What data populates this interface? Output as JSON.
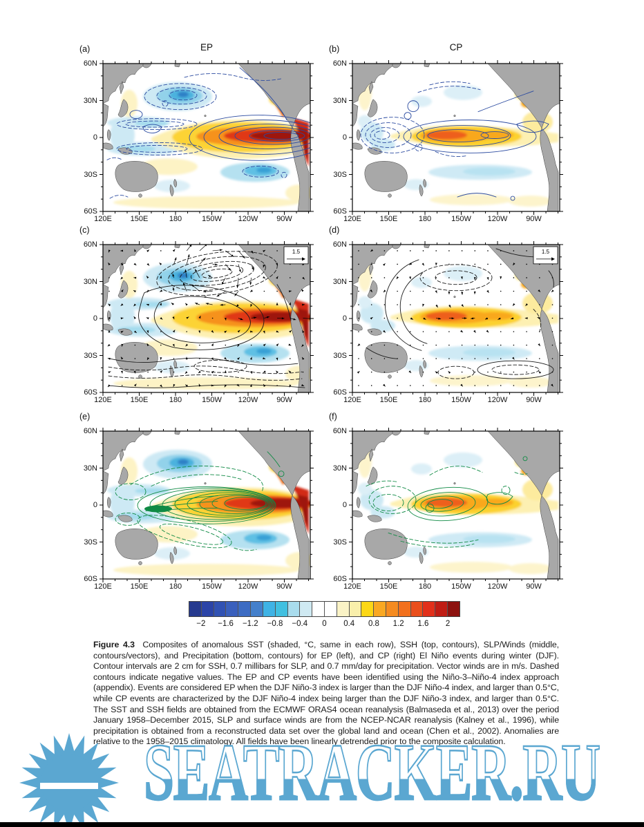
{
  "columns": [
    {
      "title": "EP"
    },
    {
      "title": "CP"
    }
  ],
  "panels": [
    {
      "letter": "(a)",
      "column": "EP",
      "shading": "SST (°C)",
      "contours": "SSH"
    },
    {
      "letter": "(b)",
      "column": "CP",
      "shading": "SST (°C)",
      "contours": "SSH"
    },
    {
      "letter": "(c)",
      "column": "EP",
      "shading": "SST (°C)",
      "contours": "SLP",
      "vectors": "surface winds",
      "vector_scale": "1.5"
    },
    {
      "letter": "(d)",
      "column": "CP",
      "shading": "SST (°C)",
      "contours": "SLP",
      "vectors": "surface winds",
      "vector_scale": "1.5"
    },
    {
      "letter": "(e)",
      "column": "EP",
      "shading": "SST (°C)",
      "contours": "Precipitation"
    },
    {
      "letter": "(f)",
      "column": "CP",
      "shading": "SST (°C)",
      "contours": "Precipitation"
    }
  ],
  "axes": {
    "xticks": [
      "120E",
      "150E",
      "180",
      "150W",
      "120W",
      "90W"
    ],
    "yticks": [
      "60N",
      "30N",
      "0",
      "30S",
      "60S"
    ]
  },
  "colorbar": {
    "ticks": [
      "−2",
      "−1.6",
      "−1.2",
      "−0.8",
      "−0.4",
      "0",
      "0.4",
      "0.8",
      "1.2",
      "1.6",
      "2"
    ],
    "colors": [
      "#263a8f",
      "#2b44a7",
      "#3152b3",
      "#3a60bd",
      "#3d6cc3",
      "#4480cb",
      "#3fb3e5",
      "#41c0e0",
      "#a9dced",
      "#cfe9f2",
      "#ffffff",
      "#ffffff",
      "#faf3c6",
      "#f9efab",
      "#fcd716",
      "#f9a823",
      "#f58b20",
      "#f2701d",
      "#ea4f1c",
      "#e2301b",
      "#c01d15",
      "#8d1310"
    ]
  },
  "caption": {
    "label": "Figure 4.3",
    "text": "Composites of anomalous SST (shaded, °C, same in each row), SSH (top, contours), SLP/Winds (middle, contours/vectors), and Precipitation (bottom, contours) for EP (left), and CP (right) El Niño events during winter (DJF). Contour intervals are 2 cm for SSH, 0.7 millibars for SLP, and 0.7 mm/day for precipitation. Vector winds are in m/s. Dashed contours indicate negative values. The EP and CP events have been identified using the Niño-3–Niño-4 index approach (appendix). Events are considered EP when the DJF Niño-3 index is larger than the DJF Niño-4 index, and larger than 0.5°C, while CP events are characterized by the DJF Niño-4 index being larger than the DJF Niño-3 index, and larger than 0.5°C. The SST and SSH fields are obtained from the ECMWF ORAS4 ocean reanalysis (Balmaseda et al., 2013) over the period January 1958–December 2015, SLP and surface winds are from the NCEP-NCAR reanalysis (Kalney et al., 1996), while precipitation is obtained from a reconstructed data set over the global land and ocean (Chen et al., 2002). Anomalies are relative to the 1958–2015 climatology. All fields have been linearly detrended prior to the composite calculation."
  },
  "watermark": {
    "text": "SEATRACKER.RU",
    "color": "#5ba7d1"
  }
}
